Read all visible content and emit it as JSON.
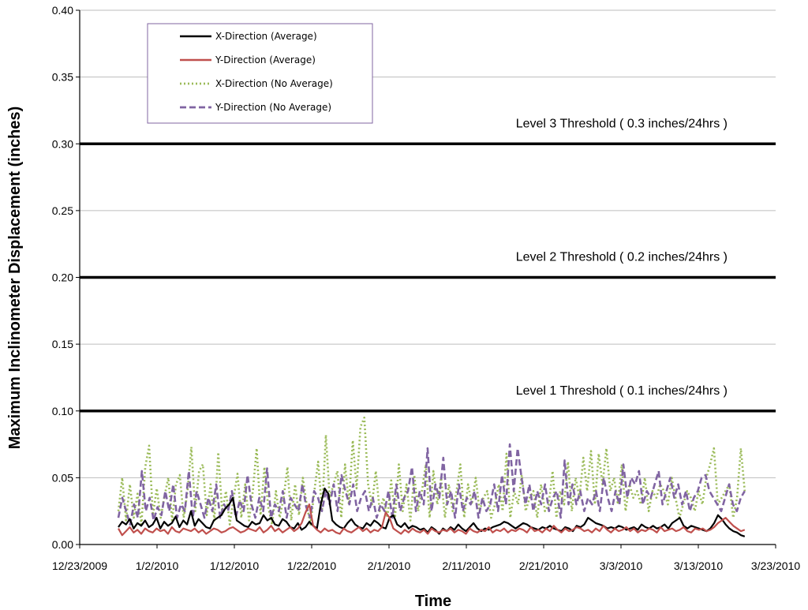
{
  "chart_data": {
    "type": "line",
    "title": "",
    "xlabel": "Time",
    "ylabel": "Maximum Inclinometer Displacement (inches)",
    "x_ticks": [
      "12/23/2009",
      "1/2/2010",
      "1/12/2010",
      "1/22/2010",
      "2/1/2010",
      "2/11/2010",
      "2/21/2010",
      "3/3/2010",
      "3/13/2010",
      "3/23/2010"
    ],
    "y_ticks": [
      "0.00",
      "0.05",
      "0.10",
      "0.15",
      "0.20",
      "0.25",
      "0.30",
      "0.35",
      "0.40"
    ],
    "xlim": [
      "2009-12-23",
      "2010-03-23"
    ],
    "ylim": [
      0,
      0.4
    ],
    "grid": "horizontal",
    "legend_position": "top-left",
    "thresholds": [
      {
        "label": "Level 3 Threshold ( 0.3 inches/24hrs )",
        "value": 0.3
      },
      {
        "label": "Level 2 Threshold ( 0.2 inches/24hrs )",
        "value": 0.2
      },
      {
        "label": "Level 1 Threshold ( 0.1 inches/24hrs )",
        "value": 0.1
      }
    ],
    "series_date_range": [
      "2009-12-28",
      "2010-03-19"
    ],
    "series": [
      {
        "name": "X-Direction (Average)",
        "color": "#000000",
        "style": "solid",
        "values": [
          0.013,
          0.017,
          0.015,
          0.019,
          0.012,
          0.016,
          0.014,
          0.018,
          0.013,
          0.015,
          0.02,
          0.012,
          0.017,
          0.014,
          0.016,
          0.021,
          0.013,
          0.018,
          0.015,
          0.025,
          0.014,
          0.019,
          0.016,
          0.013,
          0.012,
          0.018,
          0.02,
          0.022,
          0.027,
          0.03,
          0.035,
          0.018,
          0.016,
          0.014,
          0.013,
          0.017,
          0.015,
          0.016,
          0.022,
          0.018,
          0.02,
          0.015,
          0.014,
          0.019,
          0.017,
          0.013,
          0.012,
          0.016,
          0.011,
          0.013,
          0.017,
          0.014,
          0.012,
          0.03,
          0.042,
          0.038,
          0.018,
          0.015,
          0.013,
          0.012,
          0.016,
          0.019,
          0.015,
          0.013,
          0.012,
          0.016,
          0.014,
          0.018,
          0.016,
          0.013,
          0.012,
          0.02,
          0.022,
          0.015,
          0.013,
          0.016,
          0.012,
          0.014,
          0.013,
          0.011,
          0.012,
          0.009,
          0.013,
          0.011,
          0.008,
          0.012,
          0.01,
          0.013,
          0.011,
          0.015,
          0.012,
          0.01,
          0.013,
          0.016,
          0.012,
          0.01,
          0.012,
          0.011,
          0.013,
          0.014,
          0.015,
          0.017,
          0.016,
          0.014,
          0.012,
          0.014,
          0.016,
          0.015,
          0.013,
          0.012,
          0.011,
          0.013,
          0.012,
          0.014,
          0.012,
          0.011,
          0.01,
          0.013,
          0.012,
          0.01,
          0.014,
          0.013,
          0.015,
          0.02,
          0.018,
          0.016,
          0.015,
          0.014,
          0.012,
          0.013,
          0.012,
          0.014,
          0.013,
          0.011,
          0.012,
          0.013,
          0.011,
          0.015,
          0.013,
          0.012,
          0.014,
          0.012,
          0.013,
          0.015,
          0.012,
          0.016,
          0.018,
          0.02,
          0.014,
          0.012,
          0.014,
          0.013,
          0.012,
          0.011,
          0.01,
          0.012,
          0.016,
          0.022,
          0.019,
          0.015,
          0.012,
          0.01,
          0.009,
          0.007,
          0.006
        ]
      },
      {
        "name": "Y-Direction (Average)",
        "color": "#c0504d",
        "style": "solid",
        "values": [
          0.012,
          0.007,
          0.01,
          0.013,
          0.009,
          0.011,
          0.008,
          0.012,
          0.01,
          0.009,
          0.012,
          0.01,
          0.011,
          0.008,
          0.013,
          0.01,
          0.009,
          0.012,
          0.011,
          0.01,
          0.012,
          0.009,
          0.011,
          0.008,
          0.01,
          0.012,
          0.011,
          0.009,
          0.01,
          0.012,
          0.013,
          0.011,
          0.009,
          0.01,
          0.012,
          0.011,
          0.01,
          0.013,
          0.009,
          0.011,
          0.014,
          0.01,
          0.012,
          0.009,
          0.011,
          0.013,
          0.01,
          0.012,
          0.016,
          0.024,
          0.03,
          0.014,
          0.011,
          0.009,
          0.012,
          0.01,
          0.011,
          0.009,
          0.008,
          0.012,
          0.01,
          0.009,
          0.011,
          0.013,
          0.01,
          0.012,
          0.009,
          0.011,
          0.01,
          0.013,
          0.024,
          0.02,
          0.012,
          0.01,
          0.008,
          0.011,
          0.009,
          0.012,
          0.01,
          0.009,
          0.011,
          0.008,
          0.012,
          0.01,
          0.009,
          0.011,
          0.01,
          0.012,
          0.009,
          0.011,
          0.01,
          0.008,
          0.012,
          0.01,
          0.009,
          0.011,
          0.01,
          0.013,
          0.009,
          0.011,
          0.01,
          0.012,
          0.009,
          0.011,
          0.01,
          0.012,
          0.011,
          0.009,
          0.013,
          0.01,
          0.011,
          0.009,
          0.012,
          0.01,
          0.014,
          0.011,
          0.009,
          0.012,
          0.01,
          0.011,
          0.013,
          0.012,
          0.01,
          0.011,
          0.009,
          0.012,
          0.01,
          0.014,
          0.011,
          0.009,
          0.012,
          0.01,
          0.011,
          0.013,
          0.01,
          0.012,
          0.009,
          0.011,
          0.01,
          0.012,
          0.011,
          0.009,
          0.013,
          0.01,
          0.011,
          0.012,
          0.01,
          0.011,
          0.013,
          0.01,
          0.009,
          0.012,
          0.011,
          0.012,
          0.01,
          0.011,
          0.013,
          0.016,
          0.018,
          0.02,
          0.017,
          0.014,
          0.012,
          0.01,
          0.011
        ]
      },
      {
        "name": "X-Direction (No Average)",
        "color": "#9bbb59",
        "style": "dotted",
        "values": [
          0.025,
          0.05,
          0.018,
          0.045,
          0.02,
          0.038,
          0.015,
          0.058,
          0.074,
          0.022,
          0.042,
          0.02,
          0.036,
          0.05,
          0.018,
          0.045,
          0.052,
          0.02,
          0.04,
          0.073,
          0.025,
          0.055,
          0.06,
          0.022,
          0.045,
          0.018,
          0.069,
          0.025,
          0.04,
          0.015,
          0.035,
          0.053,
          0.02,
          0.045,
          0.018,
          0.04,
          0.072,
          0.022,
          0.058,
          0.028,
          0.015,
          0.04,
          0.02,
          0.035,
          0.058,
          0.018,
          0.045,
          0.022,
          0.05,
          0.03,
          0.015,
          0.04,
          0.062,
          0.025,
          0.082,
          0.035,
          0.045,
          0.055,
          0.02,
          0.06,
          0.03,
          0.078,
          0.042,
          0.088,
          0.095,
          0.045,
          0.03,
          0.055,
          0.025,
          0.035,
          0.02,
          0.048,
          0.02,
          0.06,
          0.025,
          0.045,
          0.018,
          0.052,
          0.025,
          0.04,
          0.06,
          0.02,
          0.055,
          0.03,
          0.05,
          0.02,
          0.045,
          0.025,
          0.04,
          0.06,
          0.02,
          0.045,
          0.03,
          0.05,
          0.025,
          0.035,
          0.04,
          0.02,
          0.03,
          0.045,
          0.025,
          0.068,
          0.02,
          0.04,
          0.03,
          0.052,
          0.025,
          0.035,
          0.04,
          0.02,
          0.045,
          0.025,
          0.03,
          0.055,
          0.02,
          0.04,
          0.03,
          0.062,
          0.025,
          0.05,
          0.035,
          0.065,
          0.04,
          0.07,
          0.03,
          0.068,
          0.045,
          0.072,
          0.04,
          0.05,
          0.03,
          0.06,
          0.025,
          0.045,
          0.035,
          0.04,
          0.03,
          0.05,
          0.025,
          0.04,
          0.035,
          0.045,
          0.04,
          0.03,
          0.05,
          0.035,
          0.02,
          0.03,
          0.04,
          0.035,
          0.025,
          0.04,
          0.03,
          0.05,
          0.06,
          0.072,
          0.03,
          0.035,
          0.04,
          0.045,
          0.02,
          0.035,
          0.072,
          0.04
        ]
      },
      {
        "name": "Y-Direction (No Average)",
        "color": "#8064a2",
        "style": "dashed",
        "values": [
          0.02,
          0.035,
          0.025,
          0.015,
          0.03,
          0.02,
          0.055,
          0.025,
          0.035,
          0.018,
          0.028,
          0.022,
          0.04,
          0.025,
          0.045,
          0.02,
          0.03,
          0.025,
          0.055,
          0.02,
          0.04,
          0.03,
          0.02,
          0.035,
          0.025,
          0.045,
          0.02,
          0.03,
          0.025,
          0.04,
          0.02,
          0.033,
          0.025,
          0.052,
          0.03,
          0.02,
          0.035,
          0.025,
          0.057,
          0.02,
          0.03,
          0.025,
          0.04,
          0.02,
          0.035,
          0.03,
          0.025,
          0.045,
          0.028,
          0.02,
          0.04,
          0.035,
          0.025,
          0.04,
          0.03,
          0.045,
          0.025,
          0.052,
          0.04,
          0.03,
          0.045,
          0.025,
          0.035,
          0.04,
          0.025,
          0.035,
          0.02,
          0.03,
          0.025,
          0.04,
          0.02,
          0.045,
          0.025,
          0.035,
          0.04,
          0.058,
          0.025,
          0.04,
          0.03,
          0.072,
          0.025,
          0.045,
          0.035,
          0.065,
          0.03,
          0.04,
          0.02,
          0.045,
          0.025,
          0.035,
          0.03,
          0.04,
          0.02,
          0.035,
          0.025,
          0.03,
          0.045,
          0.025,
          0.052,
          0.03,
          0.075,
          0.04,
          0.072,
          0.05,
          0.03,
          0.045,
          0.025,
          0.04,
          0.03,
          0.045,
          0.025,
          0.035,
          0.04,
          0.02,
          0.063,
          0.03,
          0.045,
          0.03,
          0.04,
          0.025,
          0.035,
          0.03,
          0.04,
          0.025,
          0.05,
          0.035,
          0.025,
          0.04,
          0.03,
          0.06,
          0.035,
          0.05,
          0.045,
          0.055,
          0.03,
          0.04,
          0.035,
          0.045,
          0.055,
          0.03,
          0.04,
          0.05,
          0.035,
          0.045,
          0.03,
          0.04,
          0.025,
          0.035,
          0.04,
          0.05,
          0.052,
          0.04,
          0.035,
          0.03,
          0.025,
          0.035,
          0.045,
          0.03,
          0.025,
          0.035,
          0.04
        ]
      }
    ]
  }
}
